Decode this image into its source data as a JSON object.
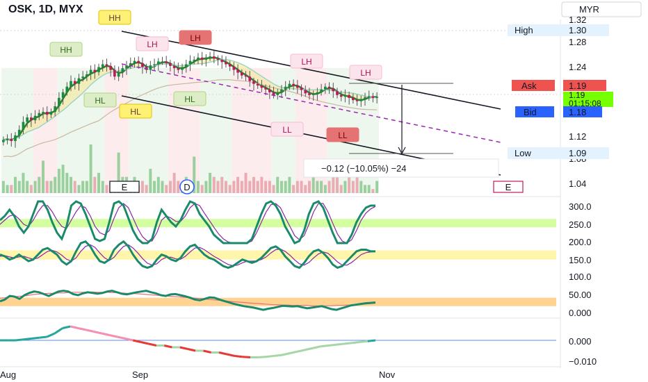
{
  "header": {
    "symbol_title": "OSK, 1D, MYX",
    "currency": "MYR"
  },
  "chart_data": {
    "type": "candlestick",
    "title": "OSK, 1D, MYX",
    "currency": "MYR",
    "x_labels": [
      "Aug",
      "Sep",
      "Nov"
    ],
    "y_ticks": [
      "1.32",
      "1.28",
      "1.24",
      "1.12",
      "1.08",
      "1.04"
    ],
    "y_range": [
      1.02,
      1.33
    ],
    "quote": {
      "high_label": "High",
      "high": "1.30",
      "ask_label": "Ask",
      "ask": "1.19",
      "last": "1.19",
      "countdown": "01:15:08",
      "bid_label": "Bid",
      "bid": "1.18",
      "low_label": "Low",
      "low": "1.09"
    },
    "measure_label": "−0.12 (−10.05%) −24",
    "swing_labels": [
      {
        "text": "HH",
        "style": "yellow"
      },
      {
        "text": "HH",
        "style": "green"
      },
      {
        "text": "LH",
        "style": "pink"
      },
      {
        "text": "LH",
        "style": "red"
      },
      {
        "text": "LH",
        "style": "pink"
      },
      {
        "text": "LH",
        "style": "pink"
      },
      {
        "text": "HL",
        "style": "green"
      },
      {
        "text": "HL",
        "style": "yellow"
      },
      {
        "text": "HL",
        "style": "green"
      },
      {
        "text": "LL",
        "style": "pink"
      },
      {
        "text": "LL",
        "style": "red"
      }
    ],
    "event_markers": [
      "E",
      "D",
      "E"
    ],
    "closes": [
      1.115,
      1.117,
      1.113,
      1.123,
      1.133,
      1.147,
      1.155,
      1.15,
      1.158,
      1.163,
      1.165,
      1.16,
      1.165,
      1.175,
      1.19,
      1.2,
      1.21,
      1.22,
      1.215,
      1.225,
      1.228,
      1.232,
      1.24,
      1.236,
      1.245,
      1.25,
      1.247,
      1.24,
      1.228,
      1.236,
      1.243,
      1.248,
      1.252,
      1.256,
      1.252,
      1.245,
      1.24,
      1.248,
      1.25,
      1.255,
      1.255,
      1.252,
      1.247,
      1.243,
      1.24,
      1.245,
      1.25,
      1.256,
      1.258,
      1.262,
      1.258,
      1.262,
      1.264,
      1.26,
      1.258,
      1.254,
      1.25,
      1.246,
      1.24,
      1.235,
      1.23,
      1.228,
      1.22,
      1.215,
      1.212,
      1.208,
      1.205,
      1.2,
      1.195,
      1.2,
      1.205,
      1.21,
      1.215,
      1.212,
      1.208,
      1.204,
      1.198,
      1.195,
      1.197,
      1.2,
      1.205,
      1.21,
      1.207,
      1.202,
      1.195,
      1.192,
      1.195,
      1.19,
      1.186,
      1.184,
      1.188,
      1.191,
      1.193,
      1.19,
      1.192
    ],
    "volumes": [
      3,
      2,
      2,
      4,
      3,
      5,
      3,
      2,
      3,
      4,
      8,
      3,
      3,
      4,
      6,
      7,
      5,
      4,
      3,
      2,
      3,
      3,
      12,
      4,
      5,
      3,
      2,
      3,
      3,
      10,
      4,
      4,
      3,
      4,
      2,
      3,
      2,
      6,
      3,
      4,
      3,
      2,
      3,
      5,
      3,
      2,
      4,
      3,
      9,
      3,
      2,
      3,
      5,
      4,
      3,
      4,
      3,
      2,
      3,
      4,
      3,
      5,
      3,
      4,
      3,
      4,
      3,
      3,
      2,
      4,
      3,
      3,
      4,
      2,
      3,
      3,
      2,
      3,
      5,
      3,
      3,
      2,
      3,
      4,
      4,
      2,
      3,
      5,
      3,
      4,
      3,
      2,
      2,
      1,
      3
    ],
    "oscillators": [
      {
        "ticks": [
          "300.0",
          "250.0",
          "200.0"
        ],
        "range": [
          200,
          300
        ],
        "zone": [
          238,
          258
        ],
        "fast": [
          255,
          265,
          280,
          265,
          240,
          225,
          240,
          270,
          300,
          300,
          280,
          250,
          225,
          210,
          240,
          290,
          300,
          295,
          270,
          240,
          210,
          205,
          210,
          250,
          295,
          300,
          290,
          260,
          230,
          210,
          200,
          200,
          210,
          250,
          280,
          265,
          250,
          240,
          255,
          280,
          300,
          295,
          270,
          255,
          240,
          220,
          210,
          200,
          200,
          200,
          200,
          200,
          200,
          210,
          240,
          270,
          295,
          300,
          290,
          270,
          240,
          220,
          200,
          205,
          230,
          270,
          295,
          300,
          285,
          255,
          225,
          200,
          200,
          200,
          220,
          250,
          270,
          285,
          290,
          290
        ],
        "slow": [
          245,
          255,
          265,
          268,
          258,
          245,
          240,
          255,
          275,
          290,
          290,
          275,
          255,
          240,
          235,
          255,
          275,
          290,
          285,
          265,
          240,
          225,
          220,
          230,
          260,
          285,
          295,
          285,
          260,
          235,
          215,
          205,
          205,
          225,
          255,
          265,
          260,
          252,
          252,
          265,
          285,
          295,
          290,
          272,
          255,
          238,
          222,
          210,
          203,
          200,
          200,
          200,
          200,
          205,
          225,
          250,
          275,
          292,
          295,
          285,
          262,
          240,
          218,
          208,
          218,
          245,
          275,
          295,
          295,
          275,
          248,
          222,
          205,
          200,
          208,
          230,
          255,
          272,
          282,
          288
        ]
      },
      {
        "ticks": [
          "150.0",
          "100.0"
        ],
        "range": [
          75,
          200
        ],
        "zone": [
          135,
          163
        ],
        "fast": [
          150,
          145,
          135,
          140,
          150,
          140,
          130,
          135,
          150,
          165,
          170,
          160,
          150,
          130,
          120,
          130,
          160,
          185,
          190,
          175,
          150,
          130,
          125,
          135,
          165,
          180,
          190,
          175,
          150,
          130,
          115,
          110,
          115,
          135,
          150,
          145,
          135,
          130,
          140,
          160,
          175,
          180,
          165,
          150,
          140,
          135,
          125,
          115,
          110,
          115,
          125,
          135,
          130,
          125,
          130,
          140,
          155,
          170,
          175,
          165,
          145,
          130,
          115,
          110,
          125,
          145,
          160,
          165,
          155,
          140,
          120,
          110,
          115,
          130,
          145,
          160,
          165,
          165,
          160,
          160
        ],
        "slow": [
          145,
          147,
          143,
          140,
          143,
          145,
          140,
          136,
          140,
          150,
          160,
          163,
          158,
          148,
          136,
          130,
          140,
          160,
          175,
          180,
          172,
          155,
          140,
          132,
          142,
          160,
          175,
          180,
          170,
          155,
          138,
          124,
          118,
          122,
          135,
          142,
          142,
          137,
          136,
          145,
          158,
          170,
          172,
          165,
          155,
          145,
          137,
          128,
          120,
          116,
          118,
          125,
          130,
          130,
          131,
          135,
          143,
          155,
          165,
          167,
          160,
          148,
          134,
          122,
          118,
          126,
          140,
          152,
          158,
          154,
          142,
          128,
          118,
          118,
          126,
          138,
          150,
          156,
          158,
          160
        ]
      },
      {
        "ticks": [
          "50.00",
          "0.000"
        ],
        "range": [
          -5,
          90
        ],
        "zone": [
          22,
          45
        ],
        "fast": [
          35,
          40,
          50,
          48,
          42,
          52,
          58,
          62,
          60,
          55,
          50,
          56,
          62,
          64,
          62,
          55,
          52,
          57,
          60,
          58,
          56,
          58,
          62,
          64,
          60,
          56,
          54,
          57,
          60,
          62,
          64,
          60,
          57,
          52,
          50,
          54,
          55,
          52,
          49,
          45,
          40,
          38,
          42,
          46,
          45,
          40,
          36,
          32,
          28,
          25,
          22,
          20,
          18,
          15,
          12,
          15,
          17,
          20,
          23,
          22,
          21,
          22,
          19,
          16,
          18,
          20,
          22,
          18,
          14,
          12,
          16,
          20,
          24,
          26,
          28,
          30,
          31,
          32
        ],
        "slow": [
          44,
          45,
          47,
          48,
          49,
          50,
          52,
          54,
          55,
          56,
          57,
          57,
          58,
          58,
          59,
          60,
          60,
          60,
          61,
          61,
          60,
          60,
          60,
          59,
          59,
          58,
          57,
          57,
          56,
          55,
          54,
          53,
          52,
          51,
          50,
          49,
          48,
          47,
          46,
          45,
          44,
          43,
          42,
          40,
          39,
          38,
          37,
          35,
          34,
          33,
          32,
          31,
          30,
          29,
          28,
          27,
          26,
          26,
          25,
          25,
          24,
          24,
          24,
          24,
          23,
          23,
          23,
          23,
          23,
          24,
          24,
          25,
          25,
          26,
          27,
          28,
          29,
          30
        ]
      },
      {
        "ticks": [
          "0.000",
          "−0.010"
        ],
        "range": [
          -0.014,
          0.012
        ],
        "zero": 0,
        "fast": [
          0,
          0,
          0,
          0.0005,
          0.001,
          0.0015,
          0.002,
          0.004,
          0.007,
          0.008,
          0.007,
          0.006,
          0.005,
          0.004,
          0.003,
          0.002,
          0.001,
          0,
          -0.001,
          -0.002,
          -0.003,
          -0.003,
          -0.004,
          -0.004,
          -0.005,
          -0.006,
          -0.006,
          -0.007,
          -0.007,
          -0.008,
          -0.009,
          -0.0095,
          -0.0098,
          -0.0098,
          -0.0095,
          -0.009,
          -0.0085,
          -0.0075,
          -0.0065,
          -0.0055,
          -0.0045,
          -0.0035,
          -0.003,
          -0.0025,
          -0.002,
          -0.0015,
          -0.001,
          -0.0005,
          0
        ]
      }
    ]
  }
}
